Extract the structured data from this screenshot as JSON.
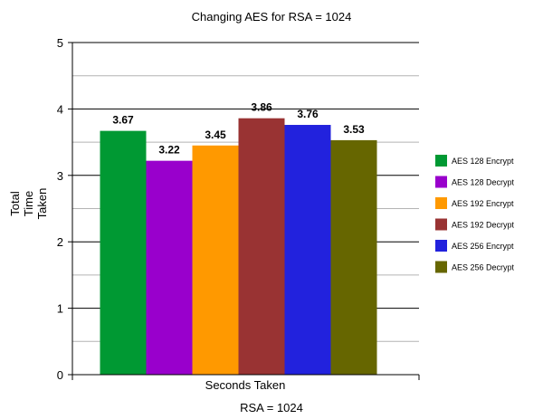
{
  "chart_data": {
    "type": "bar",
    "title": "Changing AES for RSA = 1024",
    "xlabel": "RSA = 1024",
    "category_label": "Seconds Taken",
    "ylabel": [
      "Total",
      "Time",
      "Taken"
    ],
    "ylim": [
      0,
      5
    ],
    "yticks": [
      0,
      1,
      2,
      3,
      4,
      5
    ],
    "minor_grid": true,
    "legend_position": "right",
    "series": [
      {
        "name": "AES 128 Encrypt",
        "value": 3.67,
        "label": "3.67",
        "color": "#009933"
      },
      {
        "name": "AES 128 Decrypt",
        "value": 3.22,
        "label": "3.22",
        "color": "#9900CC"
      },
      {
        "name": "AES 192 Encrypt",
        "value": 3.45,
        "label": "3.45",
        "color": "#FF9900"
      },
      {
        "name": "AES 192 Decrypt",
        "value": 3.86,
        "label": "3.86",
        "color": "#993333"
      },
      {
        "name": "AES 256 Encrypt",
        "value": 3.76,
        "label": "3.76",
        "color": "#2222DD"
      },
      {
        "name": "AES 256 Decrypt",
        "value": 3.53,
        "label": "3.53",
        "color": "#666600"
      }
    ]
  }
}
